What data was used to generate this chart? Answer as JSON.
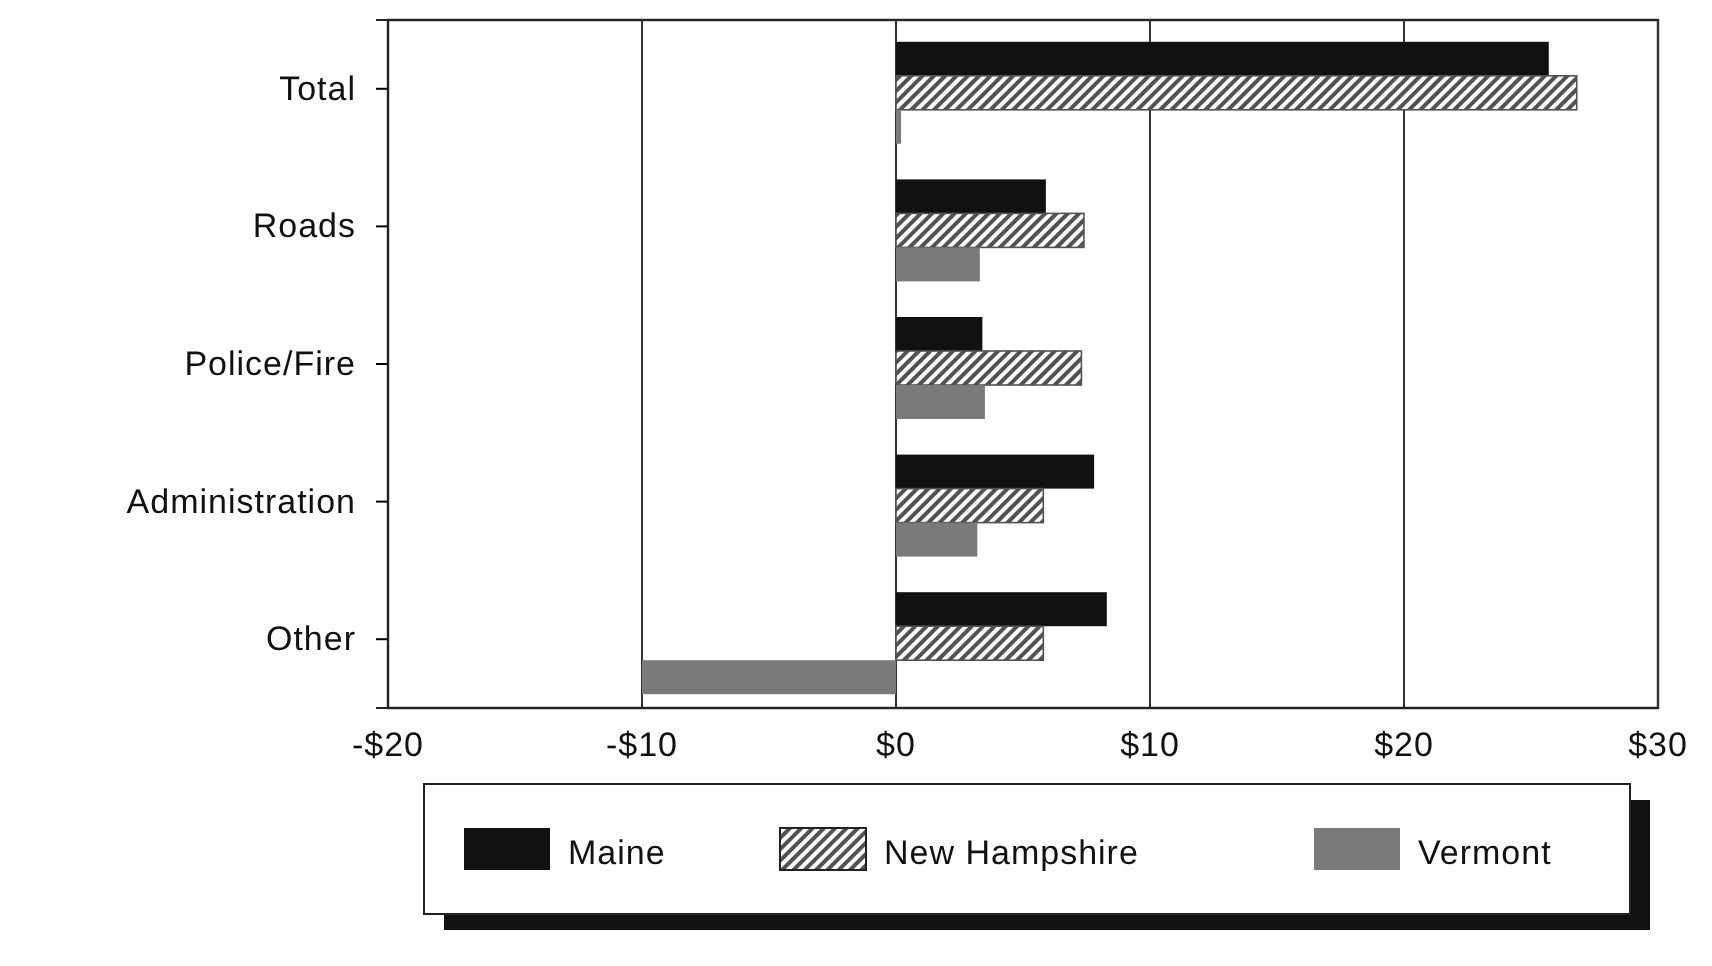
{
  "chart_data": {
    "type": "bar",
    "orientation": "horizontal",
    "categories": [
      "Total",
      "Roads",
      "Police/Fire",
      "Administration",
      "Other"
    ],
    "series": [
      {
        "name": "Maine",
        "color": "#111111",
        "values": [
          25.7,
          5.9,
          3.4,
          7.8,
          8.3
        ]
      },
      {
        "name": "New Hampshire",
        "color": "#525252",
        "values": [
          26.8,
          7.4,
          7.3,
          5.8,
          5.8
        ]
      },
      {
        "name": "Vermont",
        "color": "#7a7a7a",
        "values": [
          0.2,
          3.3,
          3.5,
          3.2,
          -10
        ]
      }
    ],
    "xlim": [
      -20,
      30
    ],
    "xticks": [
      {
        "value": -20,
        "label": "-$20"
      },
      {
        "value": -10,
        "label": "-$10"
      },
      {
        "value": 0,
        "label": "$0"
      },
      {
        "value": 10,
        "label": "$10"
      },
      {
        "value": 20,
        "label": "$20"
      },
      {
        "value": 30,
        "label": "$30"
      }
    ],
    "grid": "x",
    "legend": "bottom"
  }
}
